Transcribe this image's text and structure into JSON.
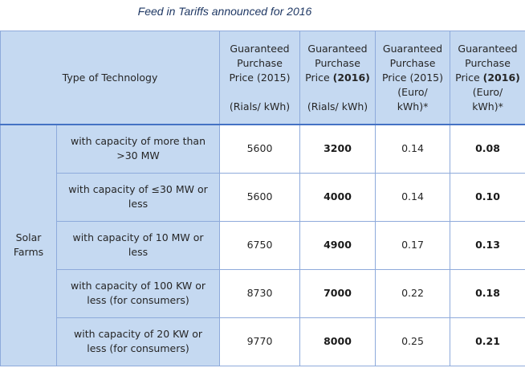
{
  "caption": "Feed in Tariffs announced for 2016",
  "headers": {
    "technology": "Type of Technology",
    "col_2015_rials": {
      "line1": "Guaranteed",
      "line2": "Purchase",
      "line3_prefix": "Price (2015)",
      "unit": "(Rials/ kWh)"
    },
    "col_2016_rials": {
      "line1": "Guaranteed",
      "line2": "Purchase",
      "line3_prefix": "Price ",
      "line3_bold": "(2016)",
      "unit": "(Rials/ kWh)"
    },
    "col_2015_euro": {
      "line1": "Guaranteed",
      "line2": "Purchase",
      "line3": "Price (2015)",
      "line4": "(Euro/",
      "line5": "kWh)*"
    },
    "col_2016_euro": {
      "line1": "Guaranteed",
      "line2": "Purchase",
      "line3_prefix": "Price ",
      "line3_bold": "(2016)",
      "line4": "(Euro/",
      "line5": "kWh)*"
    }
  },
  "group": {
    "line1": "Solar",
    "line2": "Farms"
  },
  "rows": [
    {
      "line1": "with capacity of more than",
      "line2": ">30 MW",
      "rials_2015": "5600",
      "rials_2016": "3200",
      "euro_2015": "0.14",
      "euro_2016": "0.08"
    },
    {
      "line1": "with capacity of ≤30 MW or",
      "line2": "less",
      "rials_2015": "5600",
      "rials_2016": "4000",
      "euro_2015": "0.14",
      "euro_2016": "0.10"
    },
    {
      "line1": "with capacity of 10 MW or",
      "line2": "less",
      "rials_2015": "6750",
      "rials_2016": "4900",
      "euro_2015": "0.17",
      "euro_2016": "0.13"
    },
    {
      "line1": "with capacity of 100 KW or",
      "line2": "less (for consumers)",
      "rials_2015": "8730",
      "rials_2016": "7000",
      "euro_2015": "0.22",
      "euro_2016": "0.18"
    },
    {
      "line1": "with capacity of 20 KW or",
      "line2": "less (for consumers)",
      "rials_2015": "9770",
      "rials_2016": "8000",
      "euro_2015": "0.25",
      "euro_2016": "0.21"
    }
  ]
}
